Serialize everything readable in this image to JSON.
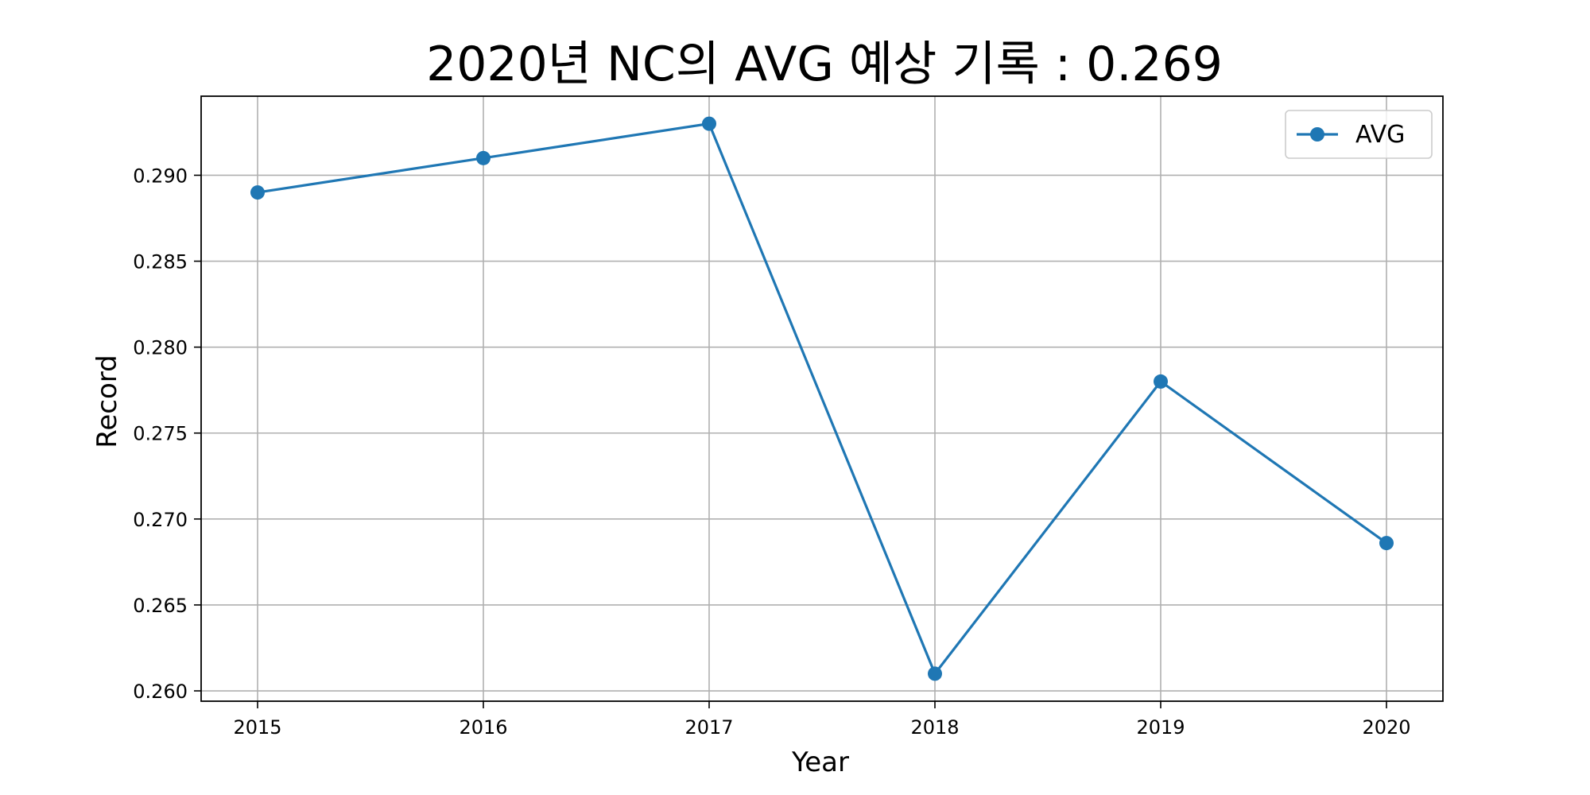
{
  "chart_data": {
    "type": "line",
    "title": "2020년 NC의 AVG 예상 기록 : 0.269",
    "xlabel": "Year",
    "ylabel": "Record",
    "x": [
      2015,
      2016,
      2017,
      2018,
      2019,
      2020
    ],
    "x_tick_labels": [
      "2015",
      "2016",
      "2017",
      "2018",
      "2019",
      "2020"
    ],
    "xlim": [
      2014.75,
      2020.25
    ],
    "ylim": [
      0.2594,
      0.2946
    ],
    "y_ticks": [
      0.26,
      0.265,
      0.27,
      0.275,
      0.28,
      0.285,
      0.29
    ],
    "y_tick_labels": [
      "0.260",
      "0.265",
      "0.270",
      "0.275",
      "0.280",
      "0.285",
      "0.290"
    ],
    "grid": true,
    "legend_position": "top-right",
    "series": [
      {
        "name": "AVG",
        "color": "#1f77b4",
        "marker": "circle",
        "values": [
          0.289,
          0.291,
          0.293,
          0.261,
          0.278,
          0.2686
        ]
      }
    ]
  }
}
